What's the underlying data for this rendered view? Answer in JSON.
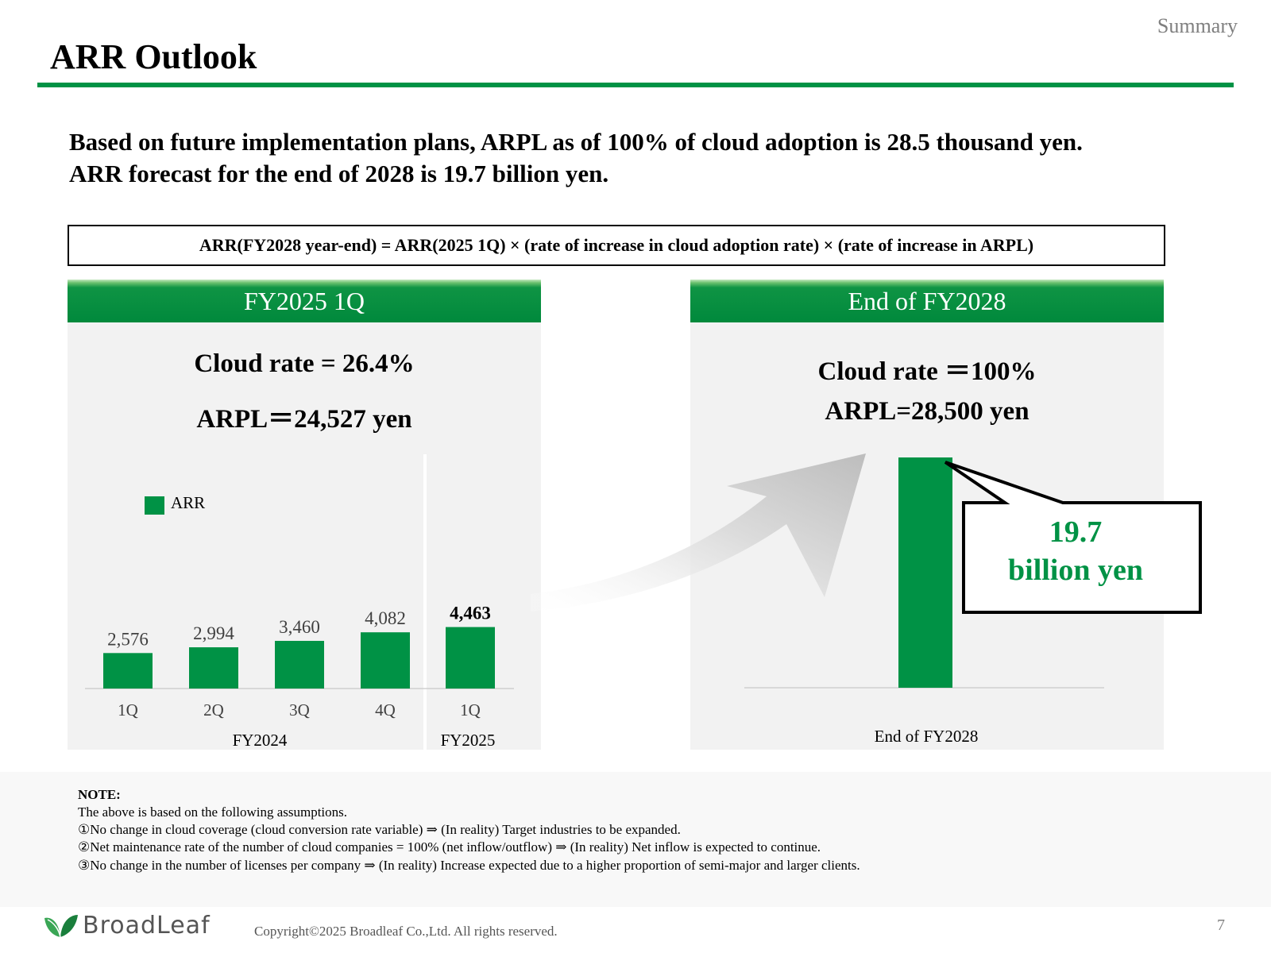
{
  "header": {
    "section": "Summary",
    "title": "ARR Outlook"
  },
  "headline": {
    "line1": "Based on future implementation plans, ARPL as of 100% of cloud adoption is 28.5 thousand yen.",
    "line2": "ARR forecast for the end of 2028 is 19.7 billion yen."
  },
  "formula": "ARR(FY2028 year-end) = ARR(2025 1Q) × (rate of increase in cloud adoption rate) × (rate of increase in ARPL)",
  "left_panel": {
    "title": "FY2025 1Q",
    "cloud_rate": "Cloud rate = 26.4%",
    "arpl": "ARPL＝24,527 yen"
  },
  "right_panel": {
    "title": "End of FY2028",
    "cloud_rate": "Cloud rate ＝100%",
    "arpl": "ARPL=28,500 yen"
  },
  "callout": {
    "value": "19.7",
    "unit": "billion yen"
  },
  "notes": {
    "title": "NOTE:",
    "intro": "The above is based on the following assumptions.",
    "items": [
      "①No change in cloud coverage (cloud conversion rate variable) ⇒ (In reality) Target industries to be expanded.",
      "②Net maintenance rate of the number of cloud companies = 100% (net inflow/outflow) ⇒ (In reality) Net inflow is expected to continue.",
      "③No change in the number of licenses per company ⇒ (In reality) Increase expected due to a higher proportion of semi-major and larger clients."
    ]
  },
  "footer": {
    "copyright": "Copyright©2025 Broadleaf Co.,Ltd. All rights reserved.",
    "page": "7",
    "logo_text": "BroadLeaf"
  },
  "colors": {
    "accent": "#009245",
    "bar": "#009245",
    "panel_bg": "#f2f2f2"
  },
  "chart_data": [
    {
      "type": "bar",
      "series_name": "ARR",
      "categories": [
        "1Q",
        "2Q",
        "3Q",
        "4Q",
        "1Q"
      ],
      "groups": [
        {
          "label": "FY2024",
          "span": [
            0,
            3
          ]
        },
        {
          "label": "FY2025",
          "span": [
            4,
            4
          ]
        }
      ],
      "values": [
        2576,
        2994,
        3460,
        4082,
        4463
      ],
      "value_labels": [
        "2,576",
        "2,994",
        "3,460",
        "4,082",
        "4,463"
      ],
      "legend": "ARR",
      "unit": "million yen"
    },
    {
      "type": "bar",
      "categories": [
        "End of FY2028"
      ],
      "values": [
        19700
      ],
      "unit": "million yen"
    }
  ]
}
